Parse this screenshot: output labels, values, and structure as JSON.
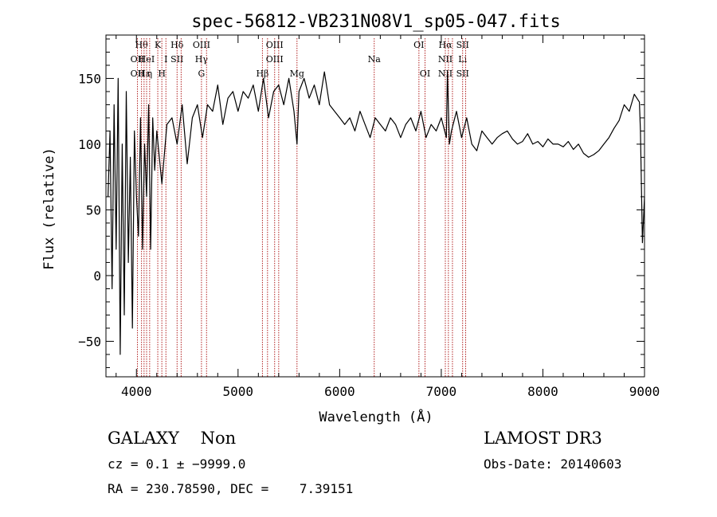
{
  "chart_data": {
    "type": "line",
    "title": "spec-56812-VB231N08V1_sp05-047.fits",
    "xlabel": "Wavelength (Å)",
    "ylabel": "Flux (relative)",
    "xlim": [
      3700,
      9000
    ],
    "ylim": [
      -77,
      183
    ],
    "x_ticks": [
      4000,
      5000,
      6000,
      7000,
      8000,
      9000
    ],
    "x_tick_labels": [
      "4000",
      "5000",
      "6000",
      "7000",
      "8000",
      "9000"
    ],
    "y_ticks": [
      -50,
      0,
      50,
      100,
      150
    ],
    "y_tick_labels": [
      "−50",
      "0",
      "50",
      "100",
      "150"
    ],
    "series": [
      {
        "name": "flux",
        "x": [
          3720,
          3740,
          3760,
          3780,
          3800,
          3820,
          3840,
          3860,
          3880,
          3900,
          3920,
          3940,
          3960,
          3980,
          4000,
          4020,
          4040,
          4060,
          4080,
          4100,
          4120,
          4140,
          4160,
          4180,
          4200,
          4250,
          4300,
          4350,
          4400,
          4450,
          4500,
          4550,
          4600,
          4650,
          4700,
          4750,
          4800,
          4850,
          4900,
          4950,
          5000,
          5050,
          5100,
          5150,
          5200,
          5250,
          5300,
          5350,
          5400,
          5450,
          5500,
          5550,
          5580,
          5600,
          5650,
          5700,
          5750,
          5800,
          5850,
          5900,
          5950,
          6000,
          6050,
          6100,
          6150,
          6200,
          6250,
          6300,
          6350,
          6400,
          6450,
          6500,
          6550,
          6600,
          6650,
          6700,
          6750,
          6800,
          6850,
          6900,
          6950,
          7000,
          7050,
          7060,
          7080,
          7100,
          7150,
          7200,
          7250,
          7300,
          7350,
          7400,
          7450,
          7500,
          7550,
          7600,
          7650,
          7700,
          7750,
          7800,
          7850,
          7900,
          7950,
          8000,
          8050,
          8100,
          8150,
          8200,
          8250,
          8300,
          8350,
          8400,
          8450,
          8500,
          8550,
          8600,
          8650,
          8700,
          8750,
          8800,
          8850,
          8900,
          8950,
          8960,
          8980,
          9000
        ],
        "y": [
          60,
          110,
          -10,
          130,
          20,
          150,
          -60,
          100,
          -30,
          140,
          10,
          90,
          -40,
          110,
          60,
          30,
          120,
          20,
          100,
          60,
          130,
          20,
          120,
          80,
          110,
          70,
          115,
          120,
          100,
          130,
          85,
          120,
          130,
          105,
          130,
          125,
          145,
          115,
          135,
          140,
          125,
          140,
          135,
          145,
          125,
          150,
          120,
          140,
          145,
          130,
          150,
          125,
          100,
          140,
          150,
          135,
          145,
          130,
          155,
          130,
          125,
          120,
          115,
          120,
          110,
          125,
          115,
          105,
          120,
          115,
          110,
          120,
          115,
          105,
          115,
          120,
          110,
          125,
          105,
          115,
          110,
          120,
          105,
          155,
          100,
          110,
          125,
          105,
          120,
          100,
          95,
          110,
          105,
          100,
          105,
          108,
          110,
          104,
          100,
          102,
          108,
          100,
          102,
          98,
          104,
          100,
          100,
          98,
          102,
          96,
          100,
          93,
          90,
          92,
          95,
          100,
          105,
          112,
          118,
          130,
          125,
          138,
          132,
          110,
          25,
          60
        ]
      }
    ],
    "line_markers": [
      {
        "x": 4010,
        "top": "",
        "mid": "OII",
        "low": "OII"
      },
      {
        "x": 4050,
        "top": "Hθ",
        "mid": "",
        "low": ""
      },
      {
        "x": 4075,
        "top": "",
        "mid": "",
        "low": "Hε"
      },
      {
        "x": 4100,
        "top": "",
        "mid": "HeI",
        "low": ""
      },
      {
        "x": 4130,
        "top": "",
        "mid": "",
        "low": "η"
      },
      {
        "x": 4210,
        "top": "K",
        "mid": "",
        "low": ""
      },
      {
        "x": 4250,
        "top": "",
        "mid": "",
        "low": "H"
      },
      {
        "x": 4290,
        "top": "",
        "mid": "I",
        "low": ""
      },
      {
        "x": 4400,
        "top": "Hδ",
        "mid": "SII",
        "low": ""
      },
      {
        "x": 4440,
        "top": "",
        "mid": "",
        "low": ""
      },
      {
        "x": 4640,
        "top": "OIII",
        "mid": "Hγ",
        "low": "G"
      },
      {
        "x": 4690,
        "top": "",
        "mid": "",
        "low": ""
      },
      {
        "x": 5240,
        "top": "",
        "mid": "",
        "low": "Hβ"
      },
      {
        "x": 5290,
        "top": "",
        "mid": "",
        "low": ""
      },
      {
        "x": 5360,
        "top": "OIII",
        "mid": "OIII",
        "low": ""
      },
      {
        "x": 5400,
        "top": "",
        "mid": "",
        "low": ""
      },
      {
        "x": 5580,
        "top": "",
        "mid": "",
        "low": "Mg"
      },
      {
        "x": 6340,
        "top": "",
        "mid": "Na",
        "low": ""
      },
      {
        "x": 6780,
        "top": "OI",
        "mid": "",
        "low": ""
      },
      {
        "x": 6840,
        "top": "",
        "mid": "",
        "low": "OI"
      },
      {
        "x": 7040,
        "top": "Hα",
        "mid": "NII",
        "low": "NII"
      },
      {
        "x": 7070,
        "top": "",
        "mid": "",
        "low": ""
      },
      {
        "x": 7110,
        "top": "",
        "mid": "",
        "low": ""
      },
      {
        "x": 7210,
        "top": "SII",
        "mid": "Li",
        "low": "SII"
      },
      {
        "x": 7240,
        "top": "",
        "mid": "",
        "low": ""
      }
    ]
  },
  "info": {
    "classification": "GALAXY    Non",
    "survey": "LAMOST DR3",
    "redshift": "cz = 0.1 ± −9999.0",
    "obs_date": "Obs-Date: 20140603",
    "coords": "RA = 230.78590, DEC =    7.39151"
  },
  "colors": {
    "spectrum": "#000000",
    "marker_line": "#b22222",
    "axis": "#000000"
  }
}
